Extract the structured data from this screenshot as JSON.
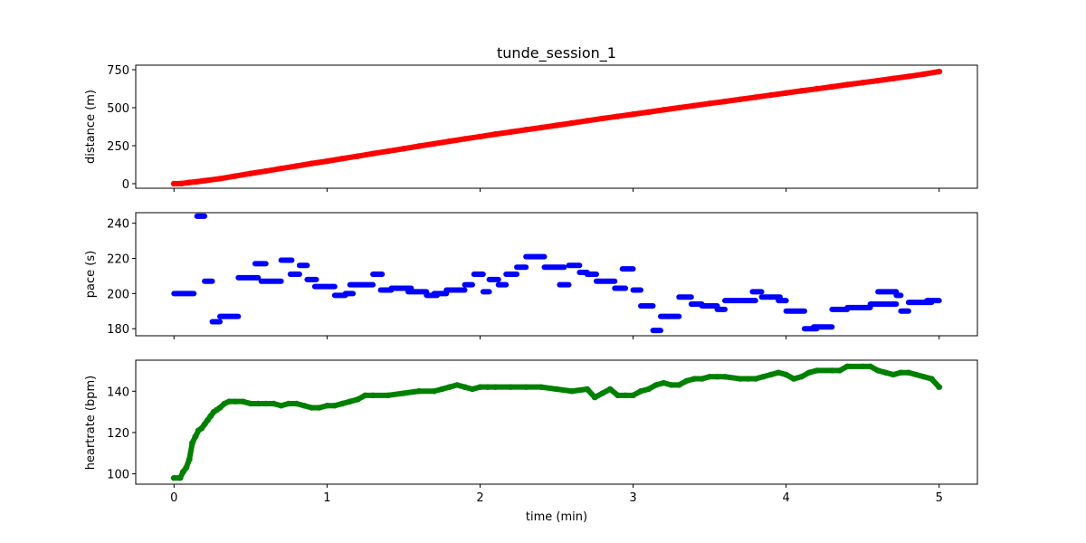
{
  "chart_data": [
    {
      "type": "scatter",
      "title": "tunde_session_1",
      "xlabel": "",
      "ylabel": "distance (m)",
      "xlim": [
        -0.25,
        5.25
      ],
      "ylim": [
        -30,
        780
      ],
      "xticks": [
        0,
        1,
        2,
        3,
        4,
        5
      ],
      "xtick_labels": [],
      "yticks": [
        0,
        250,
        500,
        750
      ],
      "ytick_labels": [
        "0",
        "250",
        "500",
        "750"
      ],
      "grid": false,
      "series": [
        {
          "color": "#ff0000",
          "x": [
            0,
            0.05,
            0.1,
            0.15,
            0.2,
            0.3,
            0.4,
            0.5,
            0.6,
            0.7,
            0.8,
            0.9,
            1.0,
            1.1,
            1.2,
            1.3,
            1.4,
            1.5,
            1.6,
            1.7,
            1.8,
            1.9,
            2.0,
            2.1,
            2.2,
            2.3,
            2.4,
            2.5,
            2.6,
            2.7,
            2.8,
            2.9,
            3.0,
            3.1,
            3.2,
            3.3,
            3.4,
            3.5,
            3.6,
            3.7,
            3.8,
            3.9,
            4.0,
            4.1,
            4.2,
            4.3,
            4.4,
            4.5,
            4.6,
            4.7,
            4.8,
            4.9,
            5.0
          ],
          "y": [
            0,
            1,
            8,
            13,
            20,
            33,
            50,
            67,
            83,
            100,
            116,
            133,
            148,
            165,
            181,
            198,
            214,
            230,
            247,
            263,
            279,
            295,
            310,
            326,
            340,
            355,
            369,
            384,
            399,
            414,
            429,
            443,
            457,
            471,
            486,
            500,
            514,
            528,
            541,
            555,
            569,
            583,
            597,
            611,
            624,
            638,
            652,
            665,
            678,
            692,
            706,
            721,
            738
          ]
        }
      ]
    },
    {
      "type": "scatter",
      "title": "",
      "xlabel": "",
      "ylabel": "pace (s)",
      "xlim": [
        -0.25,
        5.25
      ],
      "ylim": [
        176,
        246
      ],
      "xticks": [
        0,
        1,
        2,
        3,
        4,
        5
      ],
      "xtick_labels": [],
      "yticks": [
        180,
        200,
        220,
        240
      ],
      "ytick_labels": [
        "180",
        "200",
        "220",
        "240"
      ],
      "grid": false,
      "series": [
        {
          "color": "#0000ff",
          "segments": [
            [
              0.0,
              0.13,
              200
            ],
            [
              0.15,
              0.2,
              244
            ],
            [
              0.2,
              0.25,
              207
            ],
            [
              0.25,
              0.3,
              184
            ],
            [
              0.3,
              0.42,
              187
            ],
            [
              0.42,
              0.55,
              209
            ],
            [
              0.53,
              0.6,
              217
            ],
            [
              0.57,
              0.7,
              207
            ],
            [
              0.7,
              0.77,
              219
            ],
            [
              0.76,
              0.82,
              211
            ],
            [
              0.82,
              0.87,
              216
            ],
            [
              0.87,
              0.93,
              208
            ],
            [
              0.92,
              1.05,
              204
            ],
            [
              1.05,
              1.12,
              199
            ],
            [
              1.12,
              1.17,
              200
            ],
            [
              1.15,
              1.3,
              205
            ],
            [
              1.3,
              1.36,
              211
            ],
            [
              1.35,
              1.42,
              202
            ],
            [
              1.42,
              1.55,
              203
            ],
            [
              1.53,
              1.65,
              201
            ],
            [
              1.65,
              1.72,
              199
            ],
            [
              1.7,
              1.78,
              200
            ],
            [
              1.78,
              1.9,
              202
            ],
            [
              1.9,
              1.95,
              205
            ],
            [
              1.96,
              2.02,
              211
            ],
            [
              2.02,
              2.06,
              201
            ],
            [
              2.06,
              2.12,
              208
            ],
            [
              2.12,
              2.17,
              205
            ],
            [
              2.17,
              2.24,
              211
            ],
            [
              2.24,
              2.3,
              215
            ],
            [
              2.3,
              2.42,
              221
            ],
            [
              2.42,
              2.55,
              215
            ],
            [
              2.52,
              2.58,
              205
            ],
            [
              2.58,
              2.65,
              216
            ],
            [
              2.65,
              2.7,
              212
            ],
            [
              2.7,
              2.76,
              211
            ],
            [
              2.76,
              2.88,
              207
            ],
            [
              2.88,
              2.95,
              203
            ],
            [
              2.93,
              3.0,
              214
            ],
            [
              3.0,
              3.05,
              202
            ],
            [
              3.05,
              3.13,
              193
            ],
            [
              3.13,
              3.18,
              179
            ],
            [
              3.18,
              3.3,
              187
            ],
            [
              3.3,
              3.38,
              198
            ],
            [
              3.38,
              3.45,
              194
            ],
            [
              3.45,
              3.55,
              193
            ],
            [
              3.55,
              3.6,
              191
            ],
            [
              3.6,
              3.8,
              196
            ],
            [
              3.78,
              3.84,
              201
            ],
            [
              3.84,
              3.96,
              198
            ],
            [
              3.95,
              4.0,
              196
            ],
            [
              4.0,
              4.12,
              190
            ],
            [
              4.12,
              4.2,
              180
            ],
            [
              4.18,
              4.3,
              181
            ],
            [
              4.3,
              4.4,
              191
            ],
            [
              4.4,
              4.55,
              192
            ],
            [
              4.55,
              4.72,
              194
            ],
            [
              4.6,
              4.72,
              201
            ],
            [
              4.72,
              4.75,
              199
            ],
            [
              4.75,
              4.8,
              190
            ],
            [
              4.8,
              4.95,
              195
            ],
            [
              4.92,
              5.0,
              196
            ]
          ]
        }
      ]
    },
    {
      "type": "scatter",
      "title": "",
      "xlabel": "time (min)",
      "ylabel": "heartrate (bpm)",
      "xlim": [
        -0.25,
        5.25
      ],
      "ylim": [
        95,
        155
      ],
      "xticks": [
        0,
        1,
        2,
        3,
        4,
        5
      ],
      "xtick_labels": [
        "0",
        "1",
        "2",
        "3",
        "4",
        "5"
      ],
      "yticks": [
        100,
        120,
        140
      ],
      "ytick_labels": [
        "100",
        "120",
        "140"
      ],
      "grid": false,
      "series": [
        {
          "color": "#008000",
          "x": [
            0,
            0.04,
            0.06,
            0.08,
            0.1,
            0.12,
            0.14,
            0.16,
            0.18,
            0.2,
            0.22,
            0.24,
            0.26,
            0.28,
            0.3,
            0.33,
            0.36,
            0.4,
            0.45,
            0.5,
            0.55,
            0.6,
            0.65,
            0.7,
            0.75,
            0.8,
            0.85,
            0.9,
            0.95,
            1.0,
            1.05,
            1.1,
            1.15,
            1.2,
            1.25,
            1.3,
            1.4,
            1.5,
            1.6,
            1.7,
            1.75,
            1.8,
            1.85,
            1.9,
            1.95,
            2.0,
            2.05,
            2.1,
            2.2,
            2.3,
            2.4,
            2.5,
            2.6,
            2.7,
            2.75,
            2.8,
            2.85,
            2.9,
            2.95,
            3.0,
            3.05,
            3.1,
            3.15,
            3.2,
            3.25,
            3.3,
            3.35,
            3.4,
            3.45,
            3.5,
            3.55,
            3.6,
            3.7,
            3.75,
            3.8,
            3.85,
            3.9,
            3.95,
            4.0,
            4.05,
            4.1,
            4.15,
            4.2,
            4.3,
            4.35,
            4.4,
            4.5,
            4.55,
            4.6,
            4.65,
            4.7,
            4.75,
            4.8,
            4.85,
            4.9,
            4.95,
            5.0
          ],
          "y": [
            98,
            98,
            101,
            103,
            107,
            115,
            118,
            121,
            122,
            124,
            126,
            128,
            130,
            131,
            132,
            134,
            135,
            135,
            135,
            134,
            134,
            134,
            134,
            133,
            134,
            134,
            133,
            132,
            132,
            133,
            133,
            134,
            135,
            136,
            138,
            138,
            138,
            139,
            140,
            140,
            141,
            142,
            143,
            142,
            141,
            142,
            142,
            142,
            142,
            142,
            142,
            141,
            140,
            141,
            137,
            139,
            141,
            138,
            138,
            138,
            140,
            141,
            143,
            144,
            143,
            143,
            145,
            146,
            146,
            147,
            147,
            147,
            146,
            146,
            146,
            147,
            148,
            149,
            148,
            146,
            147,
            149,
            150,
            150,
            150,
            152,
            152,
            152,
            150,
            149,
            148,
            149,
            149,
            148,
            147,
            146,
            142
          ]
        }
      ]
    }
  ]
}
